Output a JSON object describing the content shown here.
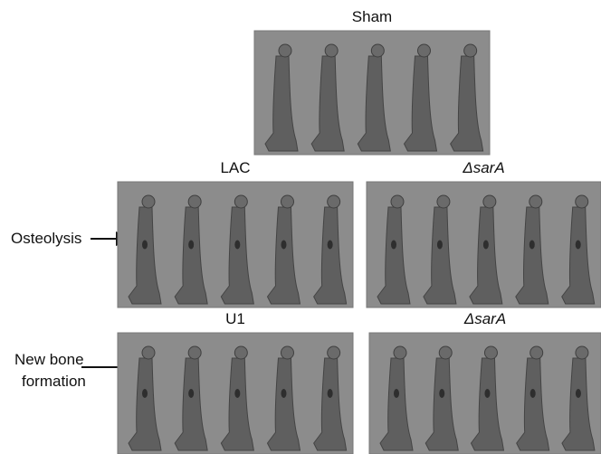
{
  "panels": [
    {
      "title": "Sham"
    },
    {
      "title": "LAC"
    },
    {
      "title": "ΔsarA"
    },
    {
      "title": "U1"
    },
    {
      "title": "ΔsarA"
    }
  ],
  "annotations": [
    {
      "label": "Osteolysis"
    },
    {
      "lines": [
        "New bone",
        "formation"
      ]
    }
  ]
}
